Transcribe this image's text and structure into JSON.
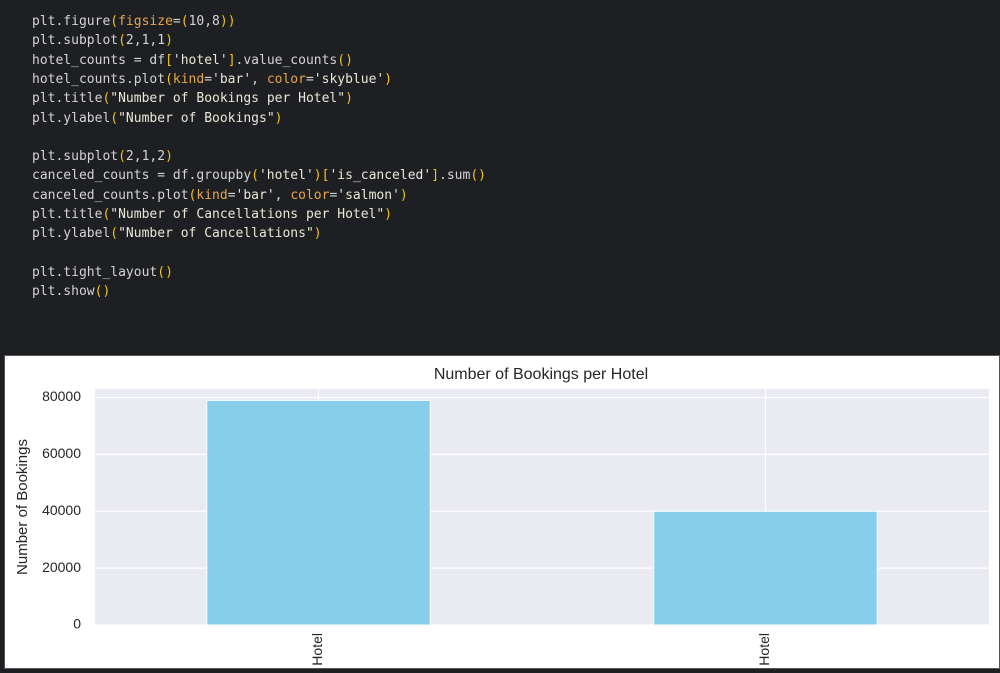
{
  "code": {
    "blocks": [
      [
        "plt.figure(figsize=(10,8))",
        "plt.subplot(2,1,1)",
        "hotel_counts = df['hotel'].value_counts()",
        "hotel_counts.plot(kind='bar', color='skyblue')",
        "plt.title(\"Number of Bookings per Hotel\")",
        "plt.ylabel(\"Number of Bookings\")"
      ],
      [
        "plt.subplot(2,1,2)",
        "canceled_counts = df.groupby('hotel')['is_canceled'].sum()",
        "canceled_counts.plot(kind='bar', color='salmon')",
        "plt.title(\"Number of Cancellations per Hotel\")",
        "plt.ylabel(\"Number of Cancellations\")"
      ],
      [
        "plt.tight_layout()",
        "plt.show()"
      ]
    ]
  },
  "chart_data": {
    "type": "bar",
    "title": "Number of Bookings per Hotel",
    "ylabel": "Number of Bookings",
    "categories": [
      "Hotel",
      "Hotel"
    ],
    "values": [
      79000,
      40000
    ],
    "color": "#87ceeb",
    "ylim": [
      0,
      83000
    ],
    "yticks": [
      0,
      20000,
      40000,
      60000,
      80000
    ],
    "grid": true
  }
}
